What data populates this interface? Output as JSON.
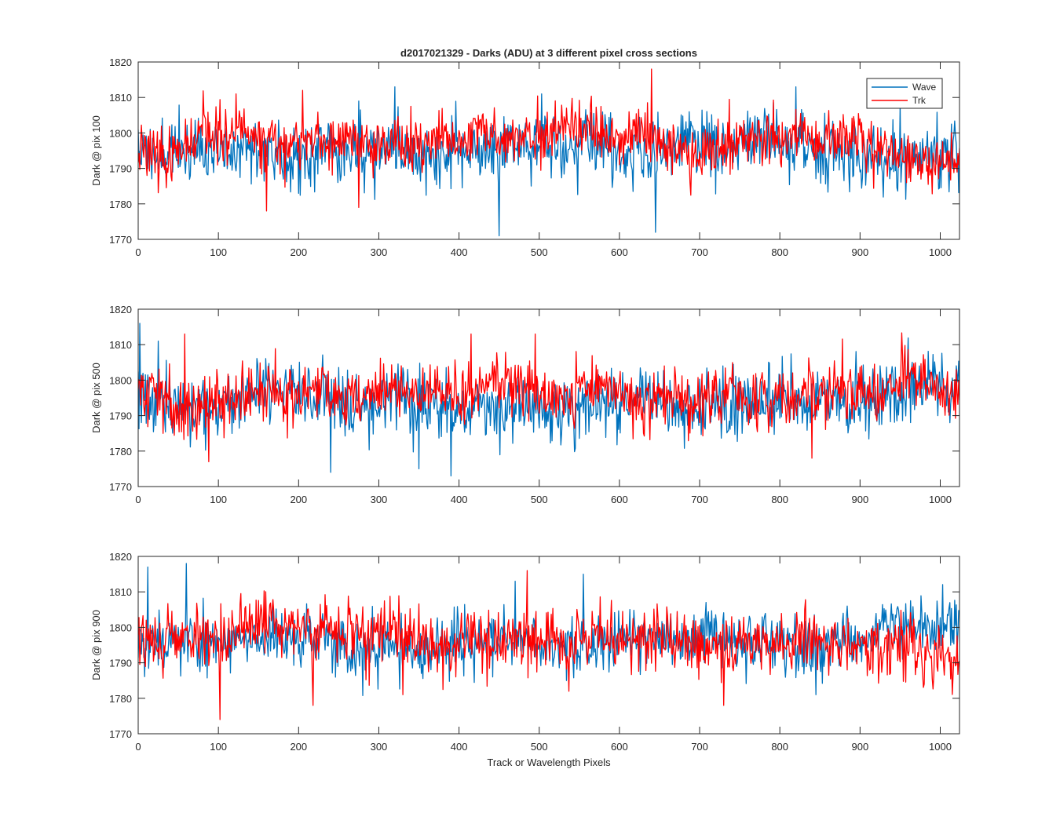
{
  "figure": {
    "title": "d2017021329 - Darks (ADU) at 3 different pixel cross sections",
    "xlabel": "Track or Wavelength Pixels"
  },
  "legend": {
    "placement": "top-right",
    "entries": [
      {
        "name": "Wave",
        "color": "#0072BD"
      },
      {
        "name": "Trk",
        "color": "#FF0000"
      }
    ]
  },
  "chart_data": [
    {
      "type": "line",
      "ylabel": "Dark @ pix 100",
      "xlim": [
        0,
        1024
      ],
      "ylim": [
        1770,
        1820
      ],
      "xticks": [
        0,
        100,
        200,
        300,
        400,
        500,
        600,
        700,
        800,
        900,
        1000
      ],
      "yticks": [
        1770,
        1780,
        1790,
        1800,
        1810,
        1820
      ],
      "grid": false,
      "series": [
        {
          "name": "Wave",
          "color": "#0072BD",
          "mean": 1795,
          "spread": 5.5,
          "seed": 11,
          "features": [
            [
              275,
              1809
            ],
            [
              320,
              1813
            ],
            [
              450,
              1771
            ],
            [
              645,
              1772
            ],
            [
              820,
              1813
            ]
          ]
        },
        {
          "name": "Trk",
          "color": "#FF0000",
          "mean": 1796,
          "spread": 4.5,
          "seed": 23,
          "features": [
            [
              122,
              1811
            ],
            [
              205,
              1812
            ],
            [
              640,
              1818
            ],
            [
              160,
              1778
            ],
            [
              275,
              1779
            ]
          ]
        }
      ]
    },
    {
      "type": "line",
      "ylabel": "Dark @ pix 500",
      "xlim": [
        0,
        1024
      ],
      "ylim": [
        1770,
        1820
      ],
      "xticks": [
        0,
        100,
        200,
        300,
        400,
        500,
        600,
        700,
        800,
        900,
        1000
      ],
      "yticks": [
        1770,
        1780,
        1790,
        1800,
        1810,
        1820
      ],
      "grid": false,
      "series": [
        {
          "name": "Wave",
          "color": "#0072BD",
          "mean": 1794,
          "spread": 5.5,
          "seed": 37,
          "features": [
            [
              2,
              1816
            ],
            [
              25,
              1811
            ],
            [
              240,
              1774
            ],
            [
              390,
              1773
            ],
            [
              350,
              1775
            ]
          ]
        },
        {
          "name": "Trk",
          "color": "#FF0000",
          "mean": 1796,
          "spread": 5,
          "seed": 41,
          "features": [
            [
              58,
              1813
            ],
            [
              415,
              1813
            ],
            [
              495,
              1813
            ],
            [
              840,
              1778
            ],
            [
              88,
              1777
            ]
          ]
        }
      ]
    },
    {
      "type": "line",
      "ylabel": "Dark @ pix 900",
      "xlim": [
        0,
        1024
      ],
      "ylim": [
        1770,
        1820
      ],
      "xticks": [
        0,
        100,
        200,
        300,
        400,
        500,
        600,
        700,
        800,
        900,
        1000
      ],
      "yticks": [
        1770,
        1780,
        1790,
        1800,
        1810,
        1820
      ],
      "grid": false,
      "series": [
        {
          "name": "Wave",
          "color": "#0072BD",
          "mean": 1797,
          "spread": 5,
          "seed": 53,
          "features": [
            [
              12,
              1817
            ],
            [
              60,
              1818
            ],
            [
              555,
              1815
            ],
            [
              470,
              1813
            ],
            [
              845,
              1781
            ]
          ]
        },
        {
          "name": "Trk",
          "color": "#FF0000",
          "mean": 1796,
          "spread": 5,
          "seed": 67,
          "features": [
            [
              485,
              1816
            ],
            [
              102,
              1774
            ],
            [
              218,
              1778
            ],
            [
              730,
              1778
            ],
            [
              330,
              1781
            ]
          ]
        }
      ]
    }
  ]
}
